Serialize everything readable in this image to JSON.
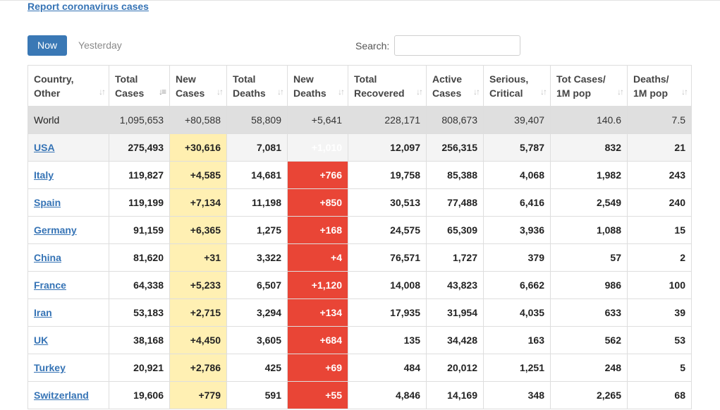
{
  "report_link": "Report coronavirus cases",
  "tabs": [
    {
      "label": "Now",
      "active": true
    },
    {
      "label": "Yesterday",
      "active": false
    }
  ],
  "search": {
    "label": "Search:",
    "value": ""
  },
  "colors": {
    "accent": "#3a78b5",
    "new_cases_bg": "#fff0b3",
    "new_deaths_bg": "#e94536",
    "world_row_bg": "#dfdfdf"
  },
  "table": {
    "columns": [
      {
        "line1": "Country,",
        "line2": "Other"
      },
      {
        "line1": "Total",
        "line2": "Cases"
      },
      {
        "line1": "New",
        "line2": "Cases"
      },
      {
        "line1": "Total",
        "line2": "Deaths"
      },
      {
        "line1": "New",
        "line2": "Deaths"
      },
      {
        "line1": "Total",
        "line2": "Recovered"
      },
      {
        "line1": "Active",
        "line2": "Cases"
      },
      {
        "line1": "Serious,",
        "line2": "Critical"
      },
      {
        "line1": "Tot Cases/",
        "line2": "1M pop"
      },
      {
        "line1": "Deaths/",
        "line2": "1M pop"
      }
    ],
    "rows": [
      [
        "World",
        "1,095,653",
        "+80,588",
        "58,809",
        "+5,641",
        "228,171",
        "808,673",
        "39,407",
        "140.6",
        "7.5"
      ],
      [
        "USA",
        "275,493",
        "+30,616",
        "7,081",
        "+1,010",
        "12,097",
        "256,315",
        "5,787",
        "832",
        "21"
      ],
      [
        "Italy",
        "119,827",
        "+4,585",
        "14,681",
        "+766",
        "19,758",
        "85,388",
        "4,068",
        "1,982",
        "243"
      ],
      [
        "Spain",
        "119,199",
        "+7,134",
        "11,198",
        "+850",
        "30,513",
        "77,488",
        "6,416",
        "2,549",
        "240"
      ],
      [
        "Germany",
        "91,159",
        "+6,365",
        "1,275",
        "+168",
        "24,575",
        "65,309",
        "3,936",
        "1,088",
        "15"
      ],
      [
        "China",
        "81,620",
        "+31",
        "3,322",
        "+4",
        "76,571",
        "1,727",
        "379",
        "57",
        "2"
      ],
      [
        "France",
        "64,338",
        "+5,233",
        "6,507",
        "+1,120",
        "14,008",
        "43,823",
        "6,662",
        "986",
        "100"
      ],
      [
        "Iran",
        "53,183",
        "+2,715",
        "3,294",
        "+134",
        "17,935",
        "31,954",
        "4,035",
        "633",
        "39"
      ],
      [
        "UK",
        "38,168",
        "+4,450",
        "3,605",
        "+684",
        "135",
        "34,428",
        "163",
        "562",
        "53"
      ],
      [
        "Turkey",
        "20,921",
        "+2,786",
        "425",
        "+69",
        "484",
        "20,012",
        "1,251",
        "248",
        "5"
      ],
      [
        "Switzerland",
        "19,606",
        "+779",
        "591",
        "+55",
        "4,846",
        "14,169",
        "348",
        "2,265",
        "68"
      ]
    ]
  }
}
